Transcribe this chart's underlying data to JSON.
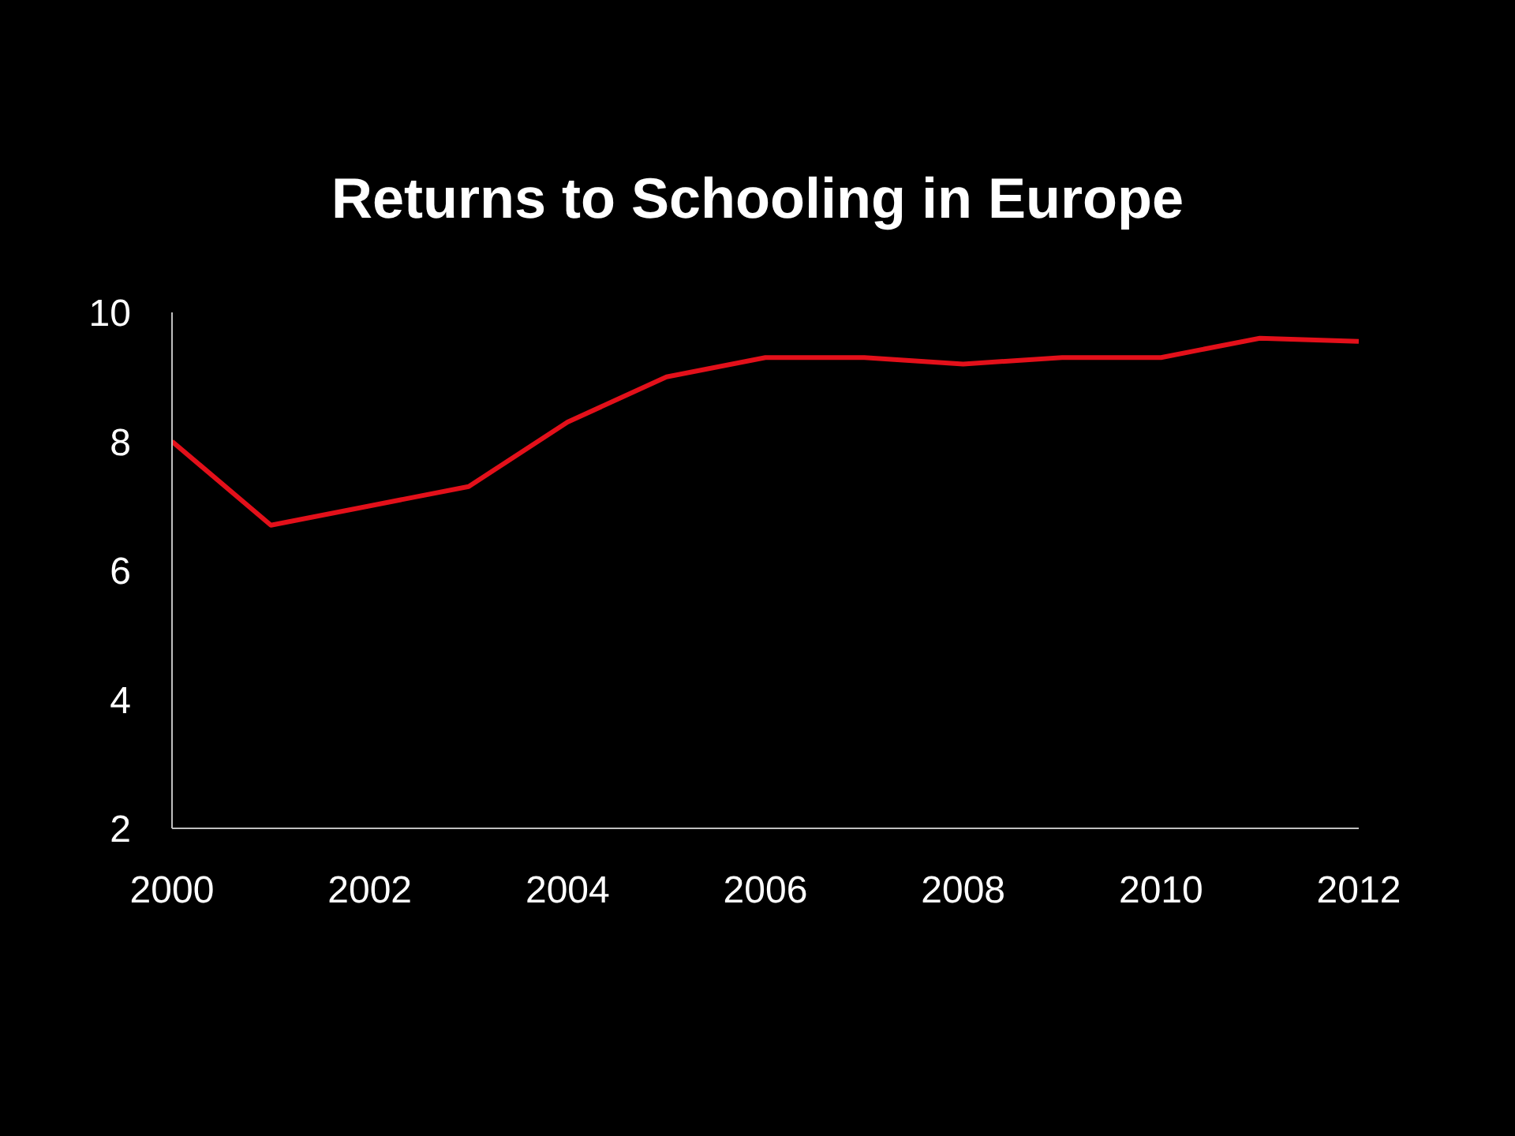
{
  "chart_data": {
    "type": "line",
    "title": "Returns to Schooling in Europe",
    "x": [
      2000,
      2001,
      2002,
      2003,
      2004,
      2005,
      2006,
      2007,
      2008,
      2009,
      2010,
      2011,
      2012
    ],
    "series": [
      {
        "color": "#e3101a",
        "values": [
          8.0,
          6.7,
          7.0,
          7.3,
          8.3,
          9.0,
          9.3,
          9.3,
          9.2,
          9.3,
          9.3,
          9.6,
          9.55
        ]
      }
    ],
    "xlim": [
      2000,
      2012
    ],
    "xticks": [
      2000,
      2002,
      2004,
      2006,
      2008,
      2010,
      2012
    ],
    "ylim": [
      2,
      10
    ],
    "yticks": [
      2,
      4,
      6,
      8,
      10
    ],
    "grid": false,
    "legend": false,
    "marker": "none",
    "line_style": "solid"
  }
}
